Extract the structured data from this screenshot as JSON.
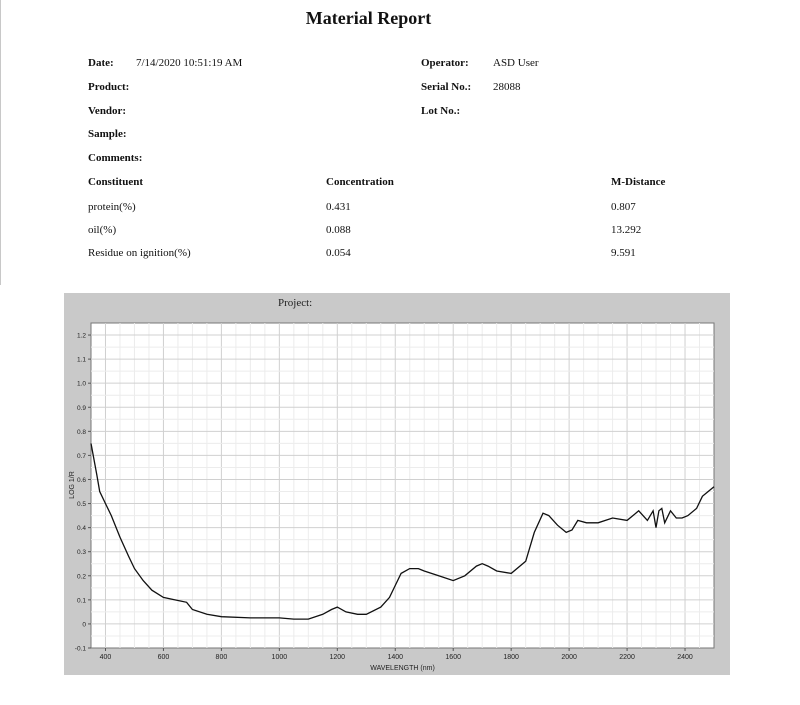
{
  "report": {
    "title": "Material Report",
    "date_label": "Date:",
    "date_value": "7/14/2020 10:51:19 AM",
    "operator_label": "Operator:",
    "operator_value": "ASD User",
    "product_label": "Product:",
    "serial_label": "Serial No.:",
    "serial_value": "28088",
    "vendor_label": "Vendor:",
    "lot_label": "Lot No.:",
    "sample_label": "Sample:",
    "comments_label": "Comments:"
  },
  "constituents": {
    "headers": [
      "Constituent",
      "Concentration",
      "M-Distance"
    ],
    "rows": [
      {
        "name": "protein(%)",
        "concentration": "0.431",
        "m_distance": "0.807"
      },
      {
        "name": "oil(%)",
        "concentration": "0.088",
        "m_distance": "13.292"
      },
      {
        "name": "Residue on ignition(%)",
        "concentration": "0.054",
        "m_distance": "9.591"
      }
    ]
  },
  "chart_data": {
    "type": "line",
    "title": "Project:",
    "xlabel": "WAVELENGTH (nm)",
    "ylabel": "LOG 1/R",
    "xlim": [
      350,
      2500
    ],
    "ylim": [
      -0.1,
      1.25
    ],
    "xticks": [
      400,
      600,
      800,
      1000,
      1200,
      1400,
      1600,
      1800,
      2000,
      2200,
      2400
    ],
    "yticks": [
      -0.1,
      0,
      0.1,
      0.2,
      0.3,
      0.4,
      0.5,
      0.6,
      0.7,
      0.8,
      0.9,
      1.0,
      1.1,
      1.2
    ],
    "ytick_labels": [
      "-0.1",
      "0",
      "0.1",
      "0.2",
      "0.3",
      "0.4",
      "0.5",
      "0.6",
      "0.7",
      "0.8",
      "0.9",
      "1.0",
      "1.1",
      "1.2"
    ],
    "grid": true,
    "line_color": "#111111",
    "series": [
      {
        "x": [
          350,
          370,
          380,
          400,
          420,
          450,
          480,
          500,
          530,
          560,
          600,
          640,
          680,
          700,
          750,
          800,
          900,
          1000,
          1050,
          1100,
          1150,
          1180,
          1200,
          1230,
          1270,
          1300,
          1350,
          1380,
          1400,
          1420,
          1450,
          1480,
          1500,
          1550,
          1600,
          1640,
          1680,
          1700,
          1720,
          1750,
          1800,
          1850,
          1880,
          1910,
          1930,
          1960,
          1990,
          2010,
          2030,
          2060,
          2100,
          2150,
          2200,
          2240,
          2270,
          2290,
          2300,
          2310,
          2320,
          2330,
          2350,
          2370,
          2390,
          2410,
          2440,
          2460,
          2480,
          2500
        ],
        "y": [
          0.75,
          0.62,
          0.55,
          0.5,
          0.45,
          0.36,
          0.28,
          0.23,
          0.18,
          0.14,
          0.11,
          0.1,
          0.09,
          0.06,
          0.04,
          0.03,
          0.025,
          0.025,
          0.02,
          0.02,
          0.04,
          0.06,
          0.07,
          0.05,
          0.04,
          0.04,
          0.07,
          0.11,
          0.16,
          0.21,
          0.23,
          0.23,
          0.22,
          0.2,
          0.18,
          0.2,
          0.24,
          0.25,
          0.24,
          0.22,
          0.21,
          0.26,
          0.38,
          0.46,
          0.45,
          0.41,
          0.38,
          0.39,
          0.43,
          0.42,
          0.42,
          0.44,
          0.43,
          0.47,
          0.43,
          0.47,
          0.4,
          0.47,
          0.48,
          0.42,
          0.47,
          0.44,
          0.44,
          0.45,
          0.48,
          0.53,
          0.55,
          0.57
        ]
      }
    ]
  }
}
